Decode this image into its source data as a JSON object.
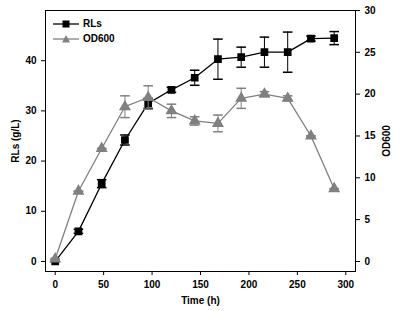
{
  "chart_data": {
    "type": "line",
    "x_label": "Time (h)",
    "y_label": "RLs (g/L)",
    "y2_label": "OD600",
    "x": [
      0,
      24,
      48,
      72,
      96,
      120,
      144,
      168,
      192,
      216,
      240,
      264,
      288
    ],
    "xlim": [
      -10,
      310
    ],
    "xticks": [
      0,
      50,
      100,
      150,
      200,
      250,
      300
    ],
    "ylim": [
      -2,
      50
    ],
    "yticks": [
      0,
      10,
      20,
      30,
      40
    ],
    "y2lim": [
      -1.2,
      30
    ],
    "y2ticks": [
      0,
      5,
      10,
      15,
      20,
      25,
      30
    ],
    "legend": "upper left",
    "series": [
      {
        "name": "RLs",
        "color": "#000000",
        "marker": "square",
        "axis": "y",
        "values": [
          0,
          6,
          15.5,
          24.2,
          31.5,
          34.2,
          36.6,
          40.3,
          40.7,
          41.7,
          41.7,
          44.4,
          44.5
        ],
        "error": [
          0,
          0.4,
          0.8,
          1,
          1,
          0.5,
          1.5,
          4,
          2,
          3,
          4,
          0.5,
          1.3
        ]
      },
      {
        "name": "OD600",
        "color": "#808080",
        "marker": "triangle",
        "axis": "y2",
        "values": [
          0.3,
          8.4,
          13.5,
          18.5,
          19.6,
          18,
          16.8,
          16.5,
          19.5,
          20,
          19.5,
          15,
          8.7
        ],
        "error": [
          0,
          0,
          0,
          1.3,
          1.4,
          0.8,
          0.5,
          1,
          1.2,
          0.3,
          0.3,
          0,
          0
        ]
      }
    ]
  }
}
